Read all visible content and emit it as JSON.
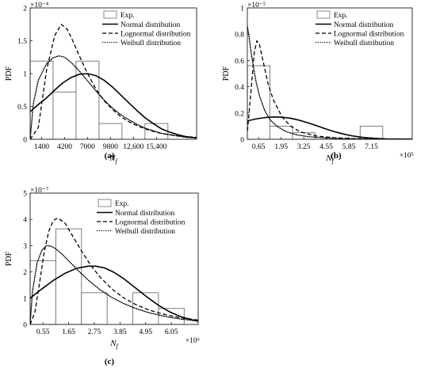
{
  "chart_data": [
    {
      "type": "bar",
      "panel_label": "(a)",
      "xlabel": "N",
      "xlabel_sub": "f",
      "ylabel": "PDF",
      "y_exponent": "×10⁻⁴",
      "x_exponent": "",
      "xlim": [
        0,
        20300
      ],
      "ylim": [
        0,
        2.0
      ],
      "x_ticks": [
        1400,
        4200,
        7000,
        9800,
        12600,
        15400
      ],
      "x_tick_labels": [
        "1400",
        "4200",
        "7000",
        "9800",
        "12,600",
        "15,400"
      ],
      "y_ticks": [
        0,
        0.5,
        1,
        1.5,
        2
      ],
      "y_tick_labels": [
        "0",
        "0.5",
        "1",
        "1.5",
        "2"
      ],
      "bars": [
        {
          "x0": 0,
          "x1": 2800,
          "value": 1.19
        },
        {
          "x0": 2800,
          "x1": 5600,
          "value": 0.72
        },
        {
          "x0": 5600,
          "x1": 8400,
          "value": 1.19
        },
        {
          "x0": 8400,
          "x1": 11200,
          "value": 0.24
        },
        {
          "x0": 11200,
          "x1": 14000,
          "value": 0.0
        },
        {
          "x0": 14000,
          "x1": 16800,
          "value": 0.24
        }
      ],
      "series": [
        {
          "name": "Normal distribution",
          "style": "solid",
          "x": [
            0,
            1000,
            2000,
            3000,
            4000,
            5000,
            6000,
            7000,
            8000,
            9000,
            10000,
            11000,
            12000,
            13000,
            14000,
            15000,
            16000,
            17000,
            18000,
            19000,
            20300
          ],
          "y": [
            0.42,
            0.53,
            0.63,
            0.75,
            0.86,
            0.94,
            0.99,
            1.0,
            0.97,
            0.9,
            0.8,
            0.68,
            0.56,
            0.44,
            0.33,
            0.24,
            0.16,
            0.11,
            0.07,
            0.04,
            0.02
          ]
        },
        {
          "name": "Lognormal distribution",
          "style": "dashed",
          "x": [
            0,
            1000,
            2000,
            3000,
            3800,
            4500,
            5200,
            6000,
            7000,
            8000,
            9000,
            10000,
            11000,
            12000,
            13000,
            14000,
            15000,
            16000,
            17000,
            18000,
            19000,
            20300
          ],
          "y": [
            0.0,
            0.18,
            1.05,
            1.58,
            1.75,
            1.68,
            1.5,
            1.27,
            1.0,
            0.77,
            0.59,
            0.46,
            0.35,
            0.27,
            0.21,
            0.16,
            0.12,
            0.09,
            0.07,
            0.05,
            0.04,
            0.03
          ]
        },
        {
          "name": "Weibull distribution",
          "style": "dotted",
          "x": [
            0,
            400,
            1000,
            2000,
            2800,
            3500,
            4200,
            5000,
            6000,
            7000,
            8000,
            9000,
            10000,
            11000,
            12000,
            13000,
            14000,
            15000,
            16000,
            17000,
            18000,
            19000,
            20300
          ],
          "y": [
            0.0,
            0.55,
            0.9,
            1.15,
            1.24,
            1.27,
            1.25,
            1.17,
            1.04,
            0.89,
            0.74,
            0.6,
            0.48,
            0.38,
            0.3,
            0.23,
            0.17,
            0.13,
            0.09,
            0.07,
            0.05,
            0.03,
            0.02
          ]
        }
      ],
      "legend": [
        "Exp.",
        "Normal distribution",
        "Lognormal distribution",
        "Weibull distribution"
      ]
    },
    {
      "type": "bar",
      "panel_label": "(b)",
      "xlabel": "N",
      "xlabel_sub": "f",
      "ylabel": "PDF",
      "y_exponent": "×10⁻⁵",
      "x_exponent": "×10⁵",
      "xlim": [
        0,
        9.5
      ],
      "ylim": [
        0,
        1.0
      ],
      "x_ticks": [
        0.65,
        1.95,
        3.25,
        4.55,
        5.85,
        7.15
      ],
      "x_tick_labels": [
        "0.65",
        "1.95",
        "3.25",
        "4.55",
        "5.85",
        "7.15"
      ],
      "y_ticks": [
        0,
        0.2,
        0.4,
        0.6,
        0.8,
        1
      ],
      "y_tick_labels": [
        "0",
        "0.2",
        "0.4",
        "0.6",
        "0.8",
        "1"
      ],
      "bars": [
        {
          "x0": 0,
          "x1": 1.3,
          "value": 0.56
        },
        {
          "x0": 1.3,
          "x1": 2.6,
          "value": 0.1
        },
        {
          "x0": 2.6,
          "x1": 3.9,
          "value": 0.05
        },
        {
          "x0": 3.9,
          "x1": 5.2,
          "value": 0.0
        },
        {
          "x0": 5.2,
          "x1": 6.5,
          "value": 0.0
        },
        {
          "x0": 6.5,
          "x1": 7.8,
          "value": 0.1
        }
      ],
      "series": [
        {
          "name": "Normal distribution",
          "style": "solid",
          "x": [
            -0.5,
            0.0,
            0.5,
            1.0,
            1.5,
            2.0,
            2.5,
            3.0,
            3.5,
            4.0,
            4.5,
            5.0,
            5.5,
            6.0,
            6.5,
            7.0,
            7.5,
            8.0,
            8.5,
            9.5
          ],
          "y": [
            0.12,
            0.14,
            0.155,
            0.165,
            0.17,
            0.168,
            0.16,
            0.145,
            0.125,
            0.103,
            0.08,
            0.059,
            0.041,
            0.027,
            0.017,
            0.01,
            0.006,
            0.003,
            0.002,
            0.001
          ]
        },
        {
          "name": "Lognormal distribution",
          "style": "dashed",
          "x": [
            -0.5,
            0.0,
            0.2,
            0.4,
            0.55,
            0.7,
            0.9,
            1.2,
            1.5,
            2.0,
            2.5,
            3.0,
            3.5,
            4.0,
            5.0,
            6.0,
            7.0,
            8.0,
            9.5
          ],
          "y": [
            0.0,
            0.05,
            0.35,
            0.66,
            0.75,
            0.72,
            0.6,
            0.42,
            0.3,
            0.17,
            0.1,
            0.06,
            0.04,
            0.025,
            0.012,
            0.006,
            0.003,
            0.002,
            0.001
          ]
        },
        {
          "name": "Weibull distribution",
          "style": "dotted",
          "x": [
            -0.25,
            -0.1,
            0.0,
            0.1,
            0.2,
            0.35,
            0.5,
            0.7,
            1.0,
            1.3,
            1.7,
            2.2,
            2.8,
            3.5,
            4.5,
            5.5,
            7.0,
            9.5
          ],
          "y": [
            1.0,
            0.93,
            0.86,
            0.78,
            0.68,
            0.55,
            0.44,
            0.33,
            0.22,
            0.15,
            0.1,
            0.06,
            0.035,
            0.02,
            0.01,
            0.005,
            0.002,
            0.001
          ]
        }
      ],
      "legend": [
        "Exp.",
        "Normal distribution",
        "Lognormal distribution",
        "Weibull distribution"
      ]
    },
    {
      "type": "bar",
      "panel_label": "(c)",
      "xlabel": "N",
      "xlabel_sub": "f",
      "ylabel": "PDF",
      "y_exponent": "×10⁻⁷",
      "x_exponent": "×10⁶",
      "xlim": [
        0,
        7.2
      ],
      "ylim": [
        0,
        5.0
      ],
      "x_ticks": [
        0.55,
        1.65,
        2.75,
        3.85,
        4.95,
        6.05
      ],
      "x_tick_labels": [
        "0.55",
        "1.65",
        "2.75",
        "3.85",
        "4.95",
        "6.05"
      ],
      "y_ticks": [
        0,
        1,
        2,
        3,
        4,
        5
      ],
      "y_tick_labels": [
        "0",
        "1",
        "2",
        "3",
        "4",
        "5"
      ],
      "bars": [
        {
          "x0": 0,
          "x1": 1.1,
          "value": 2.43
        },
        {
          "x0": 1.1,
          "x1": 2.2,
          "value": 3.64
        },
        {
          "x0": 2.2,
          "x1": 3.3,
          "value": 1.21
        },
        {
          "x0": 3.3,
          "x1": 4.4,
          "value": 0.0
        },
        {
          "x0": 4.4,
          "x1": 5.5,
          "value": 1.21
        },
        {
          "x0": 5.5,
          "x1": 6.6,
          "value": 0.61
        }
      ],
      "series": [
        {
          "name": "Normal distribution",
          "style": "solid",
          "x": [
            0,
            0.5,
            1.0,
            1.5,
            2.0,
            2.5,
            2.8,
            3.2,
            3.6,
            4.0,
            4.5,
            5.0,
            5.5,
            6.0,
            6.5,
            7.2
          ],
          "y": [
            1.0,
            1.35,
            1.68,
            1.95,
            2.14,
            2.22,
            2.22,
            2.15,
            1.98,
            1.75,
            1.4,
            1.05,
            0.73,
            0.47,
            0.28,
            0.12
          ]
        },
        {
          "name": "Lognormal distribution",
          "style": "dashed",
          "x": [
            0,
            0.2,
            0.4,
            0.6,
            0.8,
            1.0,
            1.2,
            1.5,
            1.8,
            2.2,
            2.6,
            3.0,
            3.5,
            4.0,
            4.5,
            5.0,
            5.5,
            6.0,
            6.5,
            7.2
          ],
          "y": [
            0.0,
            0.45,
            1.55,
            2.75,
            3.55,
            3.97,
            4.05,
            3.85,
            3.4,
            2.8,
            2.25,
            1.8,
            1.35,
            1.02,
            0.77,
            0.58,
            0.44,
            0.33,
            0.25,
            0.17
          ]
        },
        {
          "name": "Weibull distribution",
          "style": "dotted",
          "x": [
            0,
            0.1,
            0.3,
            0.5,
            0.7,
            0.9,
            1.1,
            1.4,
            1.7,
            2.0,
            2.5,
            3.0,
            3.5,
            4.0,
            4.5,
            5.0,
            5.5,
            6.0,
            6.5,
            7.2
          ],
          "y": [
            0.0,
            1.25,
            2.35,
            2.82,
            3.0,
            2.98,
            2.88,
            2.65,
            2.38,
            2.1,
            1.68,
            1.32,
            1.03,
            0.8,
            0.62,
            0.47,
            0.36,
            0.27,
            0.2,
            0.13
          ]
        }
      ],
      "legend": [
        "Exp.",
        "Normal distribution",
        "Lognormal distribution",
        "Weibull distribution"
      ]
    }
  ]
}
